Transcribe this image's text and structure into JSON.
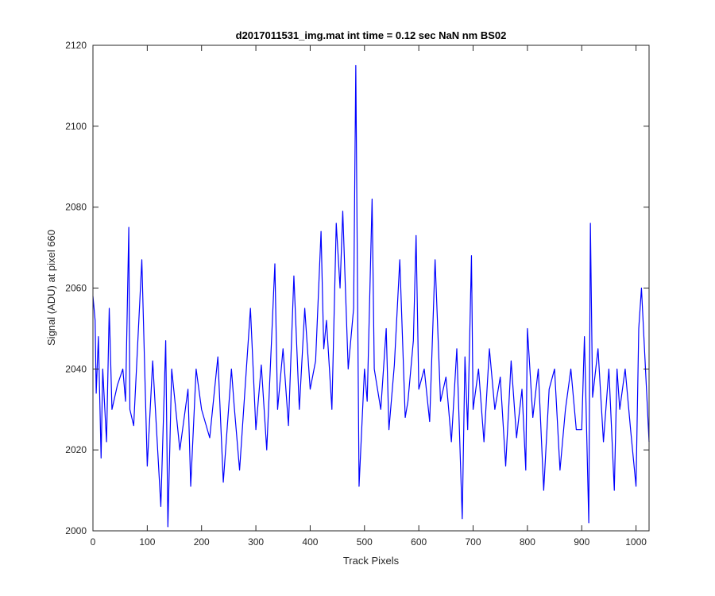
{
  "chart_data": {
    "type": "line",
    "title": "d2017011531_img.mat int time = 0.12 sec  NaN nm BS02",
    "xlabel": "Track Pixels",
    "ylabel": "Signal (ADU) at pixel 660",
    "xlim": [
      0,
      1024
    ],
    "ylim": [
      2000,
      2120
    ],
    "xticks": [
      0,
      100,
      200,
      300,
      400,
      500,
      600,
      700,
      800,
      900,
      1000
    ],
    "yticks": [
      2000,
      2020,
      2040,
      2060,
      2080,
      2100,
      2120
    ],
    "grid": false,
    "line_color": "#0000ff",
    "series": [
      {
        "x": [
          0,
          4,
          6,
          10,
          15,
          18,
          25,
          30,
          35,
          45,
          55,
          60,
          66,
          68,
          75,
          90,
          100,
          110,
          125,
          134,
          138,
          145,
          160,
          175,
          180,
          190,
          200,
          215,
          230,
          240,
          255,
          260,
          270,
          290,
          300,
          310,
          320,
          335,
          340,
          350,
          360,
          370,
          380,
          390,
          400,
          410,
          420,
          425,
          430,
          440,
          448,
          455,
          460,
          470,
          480,
          484,
          490,
          500,
          505,
          514,
          518,
          530,
          540,
          545,
          555,
          565,
          575,
          580,
          590,
          595,
          600,
          610,
          620,
          630,
          640,
          650,
          660,
          670,
          680,
          685,
          690,
          697,
          700,
          710,
          720,
          730,
          740,
          750,
          760,
          770,
          780,
          790,
          797,
          800,
          810,
          820,
          830,
          840,
          850,
          860,
          870,
          880,
          890,
          900,
          905,
          913,
          916,
          920,
          930,
          940,
          950,
          960,
          965,
          970,
          980,
          990,
          1000,
          1005,
          1010,
          1020,
          1024
        ],
        "y": [
          2058,
          2052,
          2034,
          2048,
          2018,
          2040,
          2022,
          2055,
          2030,
          2036,
          2040,
          2032,
          2075,
          2030,
          2026,
          2067,
          2016,
          2042,
          2006,
          2047,
          2001,
          2040,
          2020,
          2035,
          2011,
          2040,
          2030,
          2023,
          2043,
          2012,
          2040,
          2031,
          2015,
          2055,
          2025,
          2041,
          2020,
          2066,
          2030,
          2045,
          2026,
          2063,
          2030,
          2055,
          2035,
          2042,
          2074,
          2045,
          2052,
          2030,
          2076,
          2060,
          2079,
          2040,
          2055,
          2115,
          2011,
          2040,
          2032,
          2082,
          2040,
          2030,
          2050,
          2025,
          2041,
          2067,
          2028,
          2032,
          2047,
          2073,
          2035,
          2040,
          2027,
          2067,
          2032,
          2038,
          2022,
          2045,
          2003,
          2043,
          2025,
          2068,
          2030,
          2040,
          2022,
          2045,
          2030,
          2038,
          2016,
          2042,
          2023,
          2035,
          2015,
          2050,
          2028,
          2040,
          2010,
          2035,
          2040,
          2015,
          2030,
          2040,
          2025,
          2025,
          2048,
          2002,
          2076,
          2033,
          2045,
          2022,
          2040,
          2010,
          2040,
          2030,
          2040,
          2025,
          2011,
          2050,
          2060,
          2033,
          2022
        ]
      }
    ]
  }
}
